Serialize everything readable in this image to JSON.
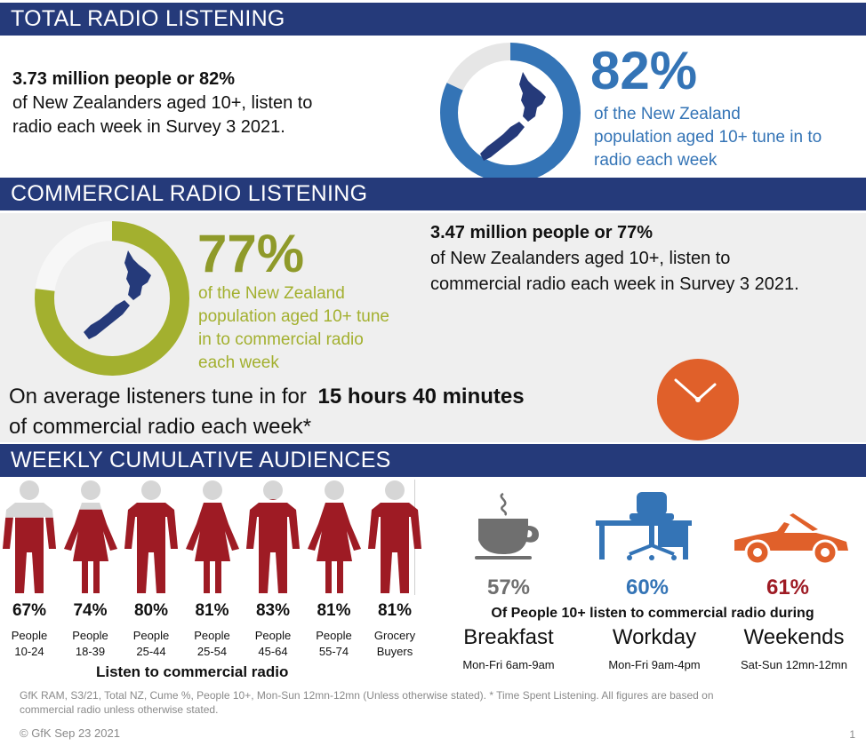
{
  "sections": {
    "total": "TOTAL RADIO LISTENING",
    "commercial": "COMMERCIAL RADIO LISTENING",
    "weekly": "WEEKLY CUMULATIVE AUDIENCES"
  },
  "total": {
    "lead": "3.73 million people or 82%",
    "body_line1": "of New Zealanders aged 10+, listen to",
    "body_line2": "radio each week in Survey 3 2021.",
    "pct": "82%",
    "pct_value": 82,
    "caption_line1": "of the New Zealand",
    "caption_line2": "population aged 10+ tune in to",
    "caption_line3": "radio each week",
    "ring_color": "#3474b6"
  },
  "commercial": {
    "lead": "3.47 million people or 77%",
    "body_line1": "of New Zealanders aged 10+, listen to",
    "body_line2": "commercial radio each week in Survey 3 2021.",
    "pct": "77%",
    "pct_value": 77,
    "caption_line1": "of the New Zealand",
    "caption_line2": "population aged 10+ tune",
    "caption_line3": "in to commercial radio",
    "caption_line4": "each week",
    "ring_color": "#a3b02f",
    "tsl_prefix": "On average listeners tune in for",
    "tsl_value": "15 hours 40 minutes",
    "tsl_suffix": "of commercial radio each week*",
    "clock_icon": "clock-icon"
  },
  "demographics": {
    "items": [
      {
        "pct": "67%",
        "value": 67,
        "line1": "People",
        "line2": "10-24",
        "gender": "male"
      },
      {
        "pct": "74%",
        "value": 74,
        "line1": "People",
        "line2": "18-39",
        "gender": "female"
      },
      {
        "pct": "80%",
        "value": 80,
        "line1": "People",
        "line2": "25-44",
        "gender": "male"
      },
      {
        "pct": "81%",
        "value": 81,
        "line1": "People",
        "line2": "25-54",
        "gender": "female"
      },
      {
        "pct": "83%",
        "value": 83,
        "line1": "People",
        "line2": "45-64",
        "gender": "male"
      },
      {
        "pct": "81%",
        "value": 81,
        "line1": "People",
        "line2": "55-74",
        "gender": "female"
      },
      {
        "pct": "81%",
        "value": 81,
        "line1": "Grocery",
        "line2": "Buyers",
        "gender": "male"
      }
    ],
    "caption": "Listen to commercial radio",
    "fill_color": "#9e1b24",
    "empty_color": "#d6d6d6"
  },
  "dayparts": {
    "heading": "Of People 10+ listen to commercial radio during",
    "items": [
      {
        "pct": "57%",
        "name": "Breakfast",
        "time": "Mon-Fri 6am-9am",
        "icon": "coffee-cup-icon",
        "color": "#6f6f6f"
      },
      {
        "pct": "60%",
        "name": "Workday",
        "time": "Mon-Fri 9am-4pm",
        "icon": "office-desk-icon",
        "color": "#3474b6"
      },
      {
        "pct": "61%",
        "name": "Weekends",
        "time": "Sat-Sun 12mn-12mn",
        "icon": "convertible-car-icon",
        "color": "#9e1b24"
      }
    ]
  },
  "footer": {
    "note_line1": "GfK RAM, S3/21, Total NZ, Cume %, People 10+, Mon-Sun 12mn-12mn (Unless otherwise stated). * Time Spent Listening. All figures are based on",
    "note_line2": "commercial radio unless otherwise stated.",
    "copyright": "© GfK Sep 23 2021",
    "page": "1"
  }
}
